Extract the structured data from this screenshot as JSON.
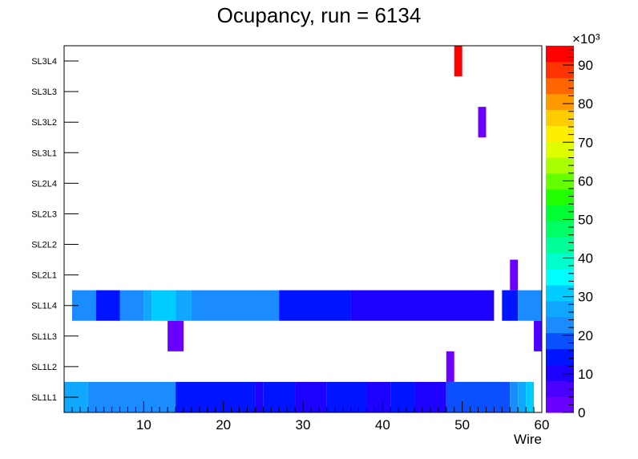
{
  "chart_data": {
    "type": "heatmap",
    "title": "Ocupancy, run = 6134",
    "xlabel": "Wire",
    "ylabel": "",
    "xlim": [
      0,
      60
    ],
    "x_ticks": [
      "10",
      "20",
      "30",
      "40",
      "50",
      "60"
    ],
    "y_categories": [
      "SL1L1",
      "SL1L2",
      "SL1L3",
      "SL1L4",
      "SL2L1",
      "SL2L2",
      "SL2L3",
      "SL2L4",
      "SL3L1",
      "SL3L2",
      "SL3L3",
      "SL3L4"
    ],
    "z_range": [
      0,
      95000
    ],
    "z_scale_label": "×10³",
    "z_ticks": [
      "0",
      "10",
      "20",
      "30",
      "40",
      "50",
      "60",
      "70",
      "80",
      "90"
    ],
    "palette": [
      "#6a00ff",
      "#4a00ff",
      "#1e00ff",
      "#0014ff",
      "#0a50ff",
      "#1a8cff",
      "#10a8ff",
      "#00ccff",
      "#00ffff",
      "#00ffcc",
      "#00ff99",
      "#00ff66",
      "#00ff33",
      "#22ff00",
      "#66ff00",
      "#aaff00",
      "#ddff00",
      "#ffee00",
      "#ffcc00",
      "#ff9900",
      "#ff6600",
      "#ff3300",
      "#ff0000"
    ],
    "cells": [
      {
        "row": "SL1L1",
        "x0": 0,
        "x1": 3,
        "z": 28000
      },
      {
        "row": "SL1L1",
        "x0": 3,
        "x1": 14,
        "z": 23000
      },
      {
        "row": "SL1L1",
        "x0": 14,
        "x1": 24,
        "z": 15000
      },
      {
        "row": "SL1L1",
        "x0": 24,
        "x1": 25,
        "z": 10000
      },
      {
        "row": "SL1L1",
        "x0": 25,
        "x1": 29,
        "z": 15000
      },
      {
        "row": "SL1L1",
        "x0": 29,
        "x1": 33,
        "z": 10000
      },
      {
        "row": "SL1L1",
        "x0": 33,
        "x1": 38,
        "z": 15000
      },
      {
        "row": "SL1L1",
        "x0": 38,
        "x1": 41,
        "z": 10000
      },
      {
        "row": "SL1L1",
        "x0": 41,
        "x1": 44,
        "z": 15000
      },
      {
        "row": "SL1L1",
        "x0": 44,
        "x1": 48,
        "z": 12000
      },
      {
        "row": "SL1L1",
        "x0": 48,
        "x1": 56,
        "z": 18000
      },
      {
        "row": "SL1L1",
        "x0": 56,
        "x1": 57,
        "z": 23000
      },
      {
        "row": "SL1L1",
        "x0": 57,
        "x1": 58,
        "z": 27000
      },
      {
        "row": "SL1L1",
        "x0": 58,
        "x1": 59,
        "z": 31000
      },
      {
        "row": "SL1L2",
        "x0": 48,
        "x1": 49,
        "z": 4000
      },
      {
        "row": "SL1L3",
        "x0": 13,
        "x1": 15,
        "z": 4000
      },
      {
        "row": "SL1L3",
        "x0": 59,
        "x1": 60,
        "z": 7000
      },
      {
        "row": "SL1L4",
        "x0": 1,
        "x1": 4,
        "z": 23000
      },
      {
        "row": "SL1L4",
        "x0": 4,
        "x1": 7,
        "z": 15000
      },
      {
        "row": "SL1L4",
        "x0": 7,
        "x1": 10,
        "z": 23000
      },
      {
        "row": "SL1L4",
        "x0": 10,
        "x1": 11,
        "z": 27000
      },
      {
        "row": "SL1L4",
        "x0": 11,
        "x1": 14,
        "z": 31000
      },
      {
        "row": "SL1L4",
        "x0": 14,
        "x1": 16,
        "z": 27000
      },
      {
        "row": "SL1L4",
        "x0": 16,
        "x1": 27,
        "z": 23000
      },
      {
        "row": "SL1L4",
        "x0": 27,
        "x1": 36,
        "z": 15000
      },
      {
        "row": "SL1L4",
        "x0": 36,
        "x1": 54,
        "z": 10000
      },
      {
        "row": "SL1L4",
        "x0": 55,
        "x1": 57,
        "z": 15000
      },
      {
        "row": "SL1L4",
        "x0": 57,
        "x1": 60,
        "z": 23000
      },
      {
        "row": "SL2L1",
        "x0": 56,
        "x1": 57,
        "z": 4000
      },
      {
        "row": "SL3L2",
        "x0": 52,
        "x1": 53,
        "z": 4000
      },
      {
        "row": "SL3L4",
        "x0": 49,
        "x1": 50,
        "z": 94000
      }
    ]
  }
}
